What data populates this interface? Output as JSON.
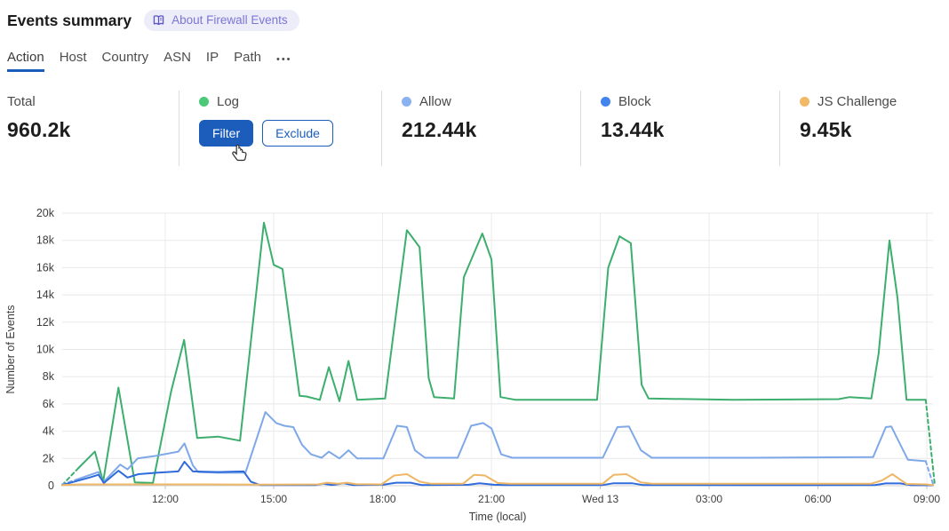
{
  "header": {
    "title": "Events summary",
    "about_badge": "About Firewall Events"
  },
  "tabs": {
    "items": [
      {
        "label": "Action",
        "active": true
      },
      {
        "label": "Host",
        "active": false
      },
      {
        "label": "Country",
        "active": false
      },
      {
        "label": "ASN",
        "active": false
      },
      {
        "label": "IP",
        "active": false
      },
      {
        "label": "Path",
        "active": false
      }
    ],
    "more_label": "•••"
  },
  "stats": {
    "cards": [
      {
        "label": "Total",
        "value": "960.2k",
        "dot_color": null
      },
      {
        "label": "Log",
        "value": null,
        "dot_color": "#4cc879",
        "buttons": {
          "filter": "Filter",
          "exclude": "Exclude"
        }
      },
      {
        "label": "Allow",
        "value": "212.44k",
        "dot_color": "#8ab2f1"
      },
      {
        "label": "Block",
        "value": "13.44k",
        "dot_color": "#4285ee"
      },
      {
        "label": "JS Challenge",
        "value": "9.45k",
        "dot_color": "#f2b967"
      }
    ]
  },
  "chart_data": {
    "type": "line",
    "title": "",
    "xlabel": "Time (local)",
    "ylabel": "Number of Events",
    "unit": "thousands of events (k)",
    "x_unit": "hours from chart start (~09:10 local), 24h span",
    "ylim": [
      0,
      20
    ],
    "x_range_hours": 24,
    "grid": true,
    "legend_position": "stat-cards-above",
    "y_ticks": [
      {
        "v": 0,
        "label": "0"
      },
      {
        "v": 2,
        "label": "2k"
      },
      {
        "v": 4,
        "label": "4k"
      },
      {
        "v": 6,
        "label": "6k"
      },
      {
        "v": 8,
        "label": "8k"
      },
      {
        "v": 10,
        "label": "10k"
      },
      {
        "v": 12,
        "label": "12k"
      },
      {
        "v": 14,
        "label": "14k"
      },
      {
        "v": 16,
        "label": "16k"
      },
      {
        "v": 18,
        "label": "18k"
      },
      {
        "v": 20,
        "label": "20k"
      }
    ],
    "x_ticks": [
      {
        "h": 2.84,
        "label": "12:00"
      },
      {
        "h": 5.83,
        "label": "15:00"
      },
      {
        "h": 8.83,
        "label": "18:00"
      },
      {
        "h": 11.83,
        "label": "21:00"
      },
      {
        "h": 14.83,
        "label": "Wed 13"
      },
      {
        "h": 17.83,
        "label": "03:00"
      },
      {
        "h": 20.83,
        "label": "06:00"
      },
      {
        "h": 23.83,
        "label": "09:00"
      }
    ],
    "series": [
      {
        "name": "Log",
        "color": "#3cae6d",
        "dash_head": 2,
        "dash_tail": 2,
        "points": [
          [
            0,
            0.05
          ],
          [
            0.45,
            1.3
          ],
          [
            0.9,
            2.5
          ],
          [
            1.13,
            0.3
          ],
          [
            1.55,
            7.2
          ],
          [
            2.0,
            0.25
          ],
          [
            2.5,
            0.2
          ],
          [
            3.0,
            6.9
          ],
          [
            3.36,
            10.7
          ],
          [
            3.72,
            3.5
          ],
          [
            4.3,
            3.6
          ],
          [
            4.9,
            3.3
          ],
          [
            5.56,
            19.3
          ],
          [
            5.83,
            16.2
          ],
          [
            6.07,
            15.9
          ],
          [
            6.54,
            6.6
          ],
          [
            6.73,
            6.55
          ],
          [
            7.1,
            6.3
          ],
          [
            7.35,
            8.7
          ],
          [
            7.64,
            6.2
          ],
          [
            7.89,
            9.15
          ],
          [
            8.13,
            6.3
          ],
          [
            8.9,
            6.4
          ],
          [
            9.5,
            18.75
          ],
          [
            9.85,
            17.5
          ],
          [
            10.1,
            7.9
          ],
          [
            10.25,
            6.5
          ],
          [
            10.8,
            6.4
          ],
          [
            11.07,
            15.3
          ],
          [
            11.58,
            18.5
          ],
          [
            11.83,
            16.6
          ],
          [
            12.08,
            6.5
          ],
          [
            12.5,
            6.3
          ],
          [
            13.5,
            6.3
          ],
          [
            14.74,
            6.3
          ],
          [
            15.05,
            16.0
          ],
          [
            15.36,
            18.3
          ],
          [
            15.67,
            17.8
          ],
          [
            15.97,
            7.4
          ],
          [
            16.16,
            6.4
          ],
          [
            18.5,
            6.3
          ],
          [
            21.4,
            6.35
          ],
          [
            21.7,
            6.5
          ],
          [
            22.3,
            6.4
          ],
          [
            22.5,
            9.7
          ],
          [
            22.8,
            18.0
          ],
          [
            23.02,
            13.8
          ],
          [
            23.27,
            6.3
          ],
          [
            23.8,
            6.3
          ],
          [
            24.05,
            0.05
          ]
        ]
      },
      {
        "name": "Allow",
        "color": "#7fa8e8",
        "dash_head": 2,
        "dash_tail": 2,
        "points": [
          [
            0,
            0.1
          ],
          [
            0.45,
            0.5
          ],
          [
            1.0,
            1.0
          ],
          [
            1.13,
            0.25
          ],
          [
            1.6,
            1.55
          ],
          [
            1.8,
            1.2
          ],
          [
            2.08,
            2.0
          ],
          [
            2.6,
            2.2
          ],
          [
            3.2,
            2.5
          ],
          [
            3.37,
            3.1
          ],
          [
            3.6,
            1.5
          ],
          [
            3.75,
            1.0
          ],
          [
            4.3,
            0.95
          ],
          [
            5.05,
            0.95
          ],
          [
            5.6,
            5.4
          ],
          [
            5.9,
            4.6
          ],
          [
            6.12,
            4.4
          ],
          [
            6.37,
            4.3
          ],
          [
            6.61,
            3.0
          ],
          [
            6.86,
            2.3
          ],
          [
            7.15,
            2.05
          ],
          [
            7.35,
            2.5
          ],
          [
            7.64,
            2.0
          ],
          [
            7.89,
            2.6
          ],
          [
            8.13,
            2.0
          ],
          [
            8.85,
            2.0
          ],
          [
            9.23,
            4.4
          ],
          [
            9.5,
            4.3
          ],
          [
            9.72,
            2.6
          ],
          [
            10.0,
            2.05
          ],
          [
            10.9,
            2.05
          ],
          [
            11.27,
            4.4
          ],
          [
            11.6,
            4.6
          ],
          [
            11.83,
            4.2
          ],
          [
            12.1,
            2.3
          ],
          [
            12.4,
            2.05
          ],
          [
            13.5,
            2.05
          ],
          [
            14.9,
            2.05
          ],
          [
            15.3,
            4.3
          ],
          [
            15.62,
            4.35
          ],
          [
            15.95,
            2.6
          ],
          [
            16.25,
            2.05
          ],
          [
            19.0,
            2.05
          ],
          [
            22.35,
            2.1
          ],
          [
            22.7,
            4.3
          ],
          [
            22.85,
            4.35
          ],
          [
            23.31,
            1.9
          ],
          [
            23.8,
            1.8
          ],
          [
            24.0,
            0.13
          ]
        ]
      },
      {
        "name": "Block",
        "color": "#2f6bdb",
        "dash_head": 0,
        "dash_tail": 0,
        "points": [
          [
            0,
            0.05
          ],
          [
            0.75,
            0.6
          ],
          [
            1.0,
            0.8
          ],
          [
            1.15,
            0.2
          ],
          [
            1.55,
            1.1
          ],
          [
            1.8,
            0.6
          ],
          [
            2.1,
            0.85
          ],
          [
            2.6,
            0.95
          ],
          [
            3.2,
            1.05
          ],
          [
            3.37,
            1.76
          ],
          [
            3.6,
            1.05
          ],
          [
            4.3,
            1.0
          ],
          [
            5.0,
            1.05
          ],
          [
            5.2,
            0.3
          ],
          [
            5.45,
            0.05
          ],
          [
            7.0,
            0.05
          ],
          [
            7.2,
            0.15
          ],
          [
            7.45,
            0.05
          ],
          [
            7.75,
            0.18
          ],
          [
            8.0,
            0.05
          ],
          [
            8.85,
            0.07
          ],
          [
            9.2,
            0.22
          ],
          [
            9.6,
            0.22
          ],
          [
            9.9,
            0.05
          ],
          [
            11.2,
            0.07
          ],
          [
            11.5,
            0.18
          ],
          [
            11.9,
            0.07
          ],
          [
            12.2,
            0.05
          ],
          [
            14.9,
            0.05
          ],
          [
            15.2,
            0.18
          ],
          [
            15.7,
            0.18
          ],
          [
            16.0,
            0.05
          ],
          [
            19.0,
            0.04
          ],
          [
            22.4,
            0.05
          ],
          [
            22.7,
            0.17
          ],
          [
            23.1,
            0.17
          ],
          [
            23.4,
            0.04
          ],
          [
            24.0,
            0.03
          ]
        ]
      },
      {
        "name": "JS Challenge",
        "color": "#eeb766",
        "dash_head": 0,
        "dash_tail": 0,
        "points": [
          [
            0,
            0.05
          ],
          [
            0.5,
            0.1
          ],
          [
            4.0,
            0.1
          ],
          [
            5.5,
            0.08
          ],
          [
            7.05,
            0.1
          ],
          [
            7.3,
            0.22
          ],
          [
            7.6,
            0.15
          ],
          [
            7.85,
            0.22
          ],
          [
            8.1,
            0.12
          ],
          [
            8.8,
            0.1
          ],
          [
            9.15,
            0.75
          ],
          [
            9.5,
            0.85
          ],
          [
            9.85,
            0.3
          ],
          [
            10.15,
            0.15
          ],
          [
            11.05,
            0.15
          ],
          [
            11.35,
            0.8
          ],
          [
            11.65,
            0.75
          ],
          [
            12.0,
            0.2
          ],
          [
            12.35,
            0.15
          ],
          [
            14.9,
            0.15
          ],
          [
            15.2,
            0.8
          ],
          [
            15.55,
            0.85
          ],
          [
            15.95,
            0.25
          ],
          [
            16.25,
            0.15
          ],
          [
            20.0,
            0.15
          ],
          [
            22.3,
            0.15
          ],
          [
            22.6,
            0.4
          ],
          [
            22.88,
            0.85
          ],
          [
            23.27,
            0.13
          ],
          [
            23.8,
            0.1
          ],
          [
            24.0,
            0.05
          ]
        ]
      }
    ]
  }
}
